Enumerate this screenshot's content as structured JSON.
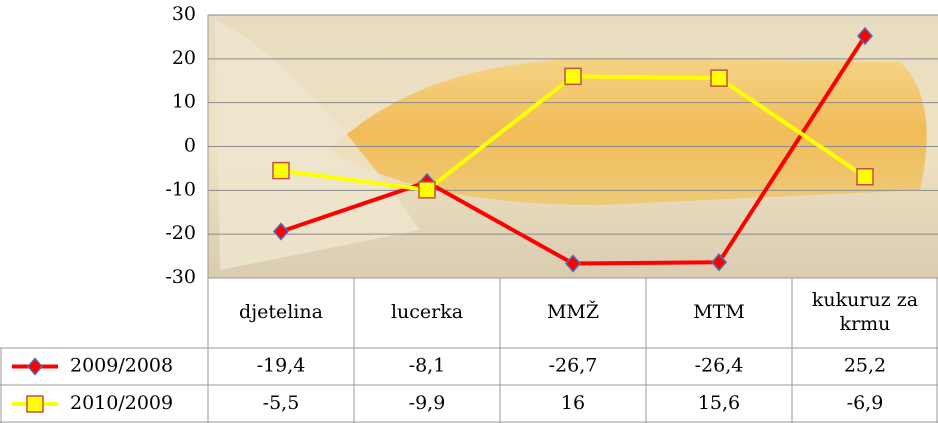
{
  "chart_data": {
    "type": "line",
    "categories": [
      "djetelina",
      "lucerka",
      "MMŽ",
      "MTM",
      "kukuruz za krmu"
    ],
    "series": [
      {
        "name": "2009/2008",
        "color": "#ff0000",
        "values": [
          -19.4,
          -8.1,
          -26.7,
          -26.4,
          25.2
        ],
        "value_labels": [
          "-19,4",
          "-8,1",
          "-26,7",
          "-26,4",
          "25,2"
        ]
      },
      {
        "name": "2010/2009",
        "color": "#ffff00",
        "values": [
          -5.5,
          -9.9,
          16,
          15.6,
          -6.9
        ],
        "value_labels": [
          "-5,5",
          "-9,9",
          "16",
          "15,6",
          "-6,9"
        ]
      }
    ],
    "ylim": [
      -30,
      30
    ],
    "yticks": [
      30,
      20,
      10,
      0,
      -10,
      -20,
      -30
    ],
    "grid": true
  }
}
